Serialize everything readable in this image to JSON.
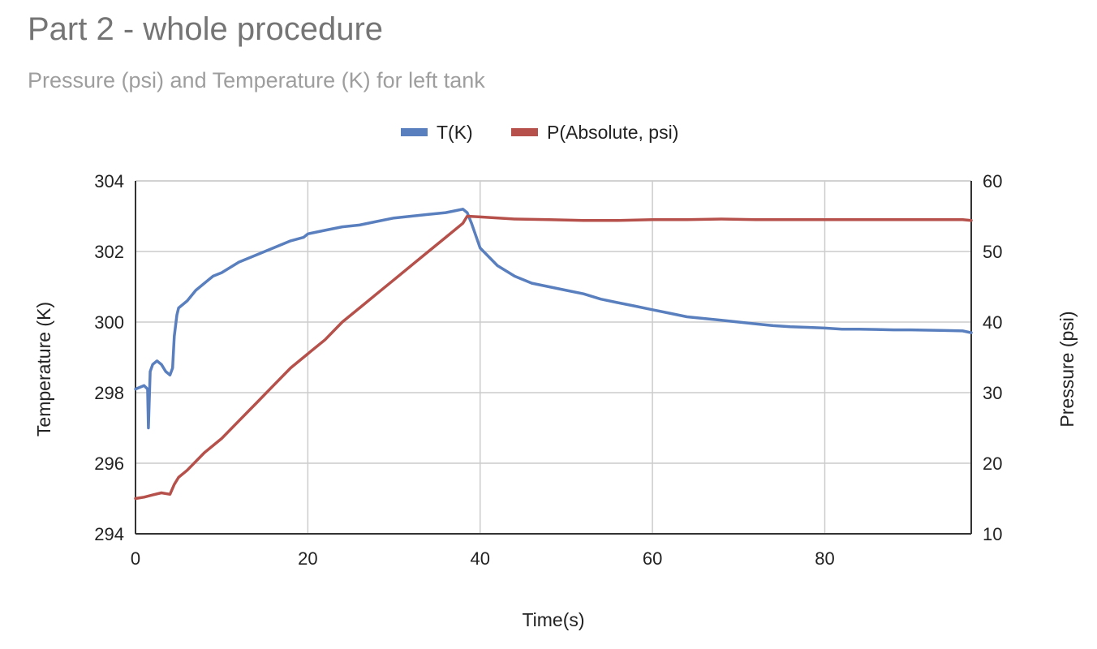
{
  "chart_data": {
    "type": "line",
    "title": "Part 2 - whole procedure",
    "subtitle": "Pressure (psi) and Temperature (K) for left tank",
    "xlabel": "Time(s)",
    "ylabel_left": "Temperature (K)",
    "ylabel_right": "Pressure (psi)",
    "xlim": [
      0,
      97
    ],
    "ylim_left": [
      294,
      304
    ],
    "ylim_right": [
      10,
      60
    ],
    "x_ticks": [
      0,
      20,
      40,
      60,
      80
    ],
    "y_ticks_left": [
      294,
      296,
      298,
      300,
      302,
      304
    ],
    "y_ticks_right": [
      10,
      20,
      30,
      40,
      50,
      60
    ],
    "grid": true,
    "legend_position": "top",
    "series": [
      {
        "name": "T(K)",
        "axis": "left",
        "color": "#5a7fbe",
        "x": [
          0,
          1,
          1.4,
          1.5,
          1.7,
          2,
          2.5,
          3,
          3.5,
          4,
          4.3,
          4.5,
          4.8,
          5,
          6,
          7,
          8,
          9,
          10,
          12,
          14,
          16,
          18,
          19.5,
          20,
          22,
          24,
          26,
          28,
          30,
          32,
          34,
          36,
          37,
          38,
          38.5,
          39,
          40,
          42,
          44,
          46,
          48,
          50,
          52,
          54,
          56,
          58,
          60,
          62,
          64,
          66,
          68,
          70,
          72,
          74,
          76,
          78,
          80,
          82,
          84,
          86,
          88,
          90,
          92,
          94,
          96,
          97
        ],
        "values": [
          298.1,
          298.2,
          298.1,
          297.0,
          298.6,
          298.8,
          298.9,
          298.8,
          298.6,
          298.5,
          298.7,
          299.6,
          300.2,
          300.4,
          300.6,
          300.9,
          301.1,
          301.3,
          301.4,
          301.7,
          301.9,
          302.1,
          302.3,
          302.4,
          302.5,
          302.6,
          302.7,
          302.75,
          302.85,
          302.95,
          303.0,
          303.05,
          303.1,
          303.15,
          303.2,
          303.1,
          302.8,
          302.1,
          301.6,
          301.3,
          301.1,
          301.0,
          300.9,
          300.8,
          300.65,
          300.55,
          300.45,
          300.35,
          300.25,
          300.15,
          300.1,
          300.05,
          300.0,
          299.95,
          299.9,
          299.87,
          299.85,
          299.83,
          299.8,
          299.8,
          299.79,
          299.78,
          299.78,
          299.77,
          299.76,
          299.75,
          299.7
        ]
      },
      {
        "name": "P(Absolute, psi)",
        "axis": "right",
        "color": "#b5504a",
        "x": [
          0,
          1,
          2,
          3,
          4,
          4.5,
          5,
          6,
          8,
          10,
          12,
          14,
          16,
          18,
          20,
          22,
          24,
          26,
          28,
          30,
          32,
          34,
          36,
          38,
          38.5,
          40,
          44,
          48,
          52,
          56,
          60,
          64,
          68,
          72,
          76,
          80,
          84,
          88,
          92,
          96,
          97
        ],
        "values": [
          15.0,
          15.2,
          15.5,
          15.8,
          15.6,
          17.0,
          18.0,
          19.0,
          21.5,
          23.5,
          26.0,
          28.5,
          31.0,
          33.5,
          35.5,
          37.5,
          40.0,
          42.0,
          44.0,
          46.0,
          48.0,
          50.0,
          52.0,
          54.0,
          55.0,
          54.9,
          54.6,
          54.5,
          54.4,
          54.4,
          54.5,
          54.5,
          54.6,
          54.5,
          54.5,
          54.5,
          54.5,
          54.5,
          54.5,
          54.5,
          54.4
        ]
      }
    ]
  }
}
